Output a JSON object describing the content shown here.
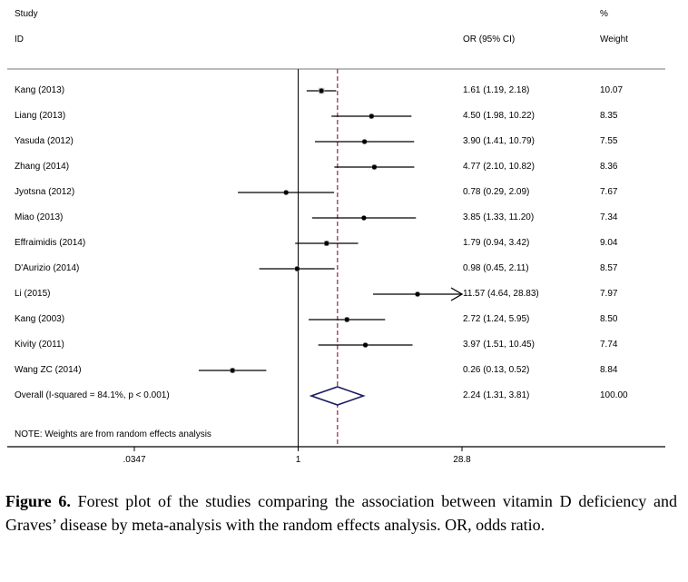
{
  "header": {
    "study": "Study",
    "id": "ID",
    "or_ci": "OR (95% CI)",
    "pct": "%",
    "weight": "Weight"
  },
  "note": "NOTE: Weights are from random effects analysis",
  "chart_data": {
    "type": "forest",
    "scale": "log",
    "xlim": [
      0.0347,
      28.8
    ],
    "ticks": [
      {
        "value": 0.0347,
        "label": ".0347"
      },
      {
        "value": 1,
        "label": "1"
      },
      {
        "value": 28.8,
        "label": "28.8"
      }
    ],
    "null_line": 1,
    "pooled_line": 2.24,
    "studies": [
      {
        "id": "Kang (2013)",
        "or": 1.61,
        "lo": 1.19,
        "hi": 2.18,
        "or_text": "1.61 (1.19, 2.18)",
        "weight": "10.07"
      },
      {
        "id": "Liang (2013)",
        "or": 4.5,
        "lo": 1.98,
        "hi": 10.22,
        "or_text": "4.50 (1.98, 10.22)",
        "weight": "8.35"
      },
      {
        "id": "Yasuda (2012)",
        "or": 3.9,
        "lo": 1.41,
        "hi": 10.79,
        "or_text": "3.90 (1.41, 10.79)",
        "weight": "7.55"
      },
      {
        "id": "Zhang (2014)",
        "or": 4.77,
        "lo": 2.1,
        "hi": 10.82,
        "or_text": "4.77 (2.10, 10.82)",
        "weight": "8.36"
      },
      {
        "id": "Jyotsna (2012)",
        "or": 0.78,
        "lo": 0.29,
        "hi": 2.09,
        "or_text": "0.78 (0.29, 2.09)",
        "weight": "7.67"
      },
      {
        "id": "Miao (2013)",
        "or": 3.85,
        "lo": 1.33,
        "hi": 11.2,
        "or_text": "3.85 (1.33, 11.20)",
        "weight": "7.34"
      },
      {
        "id": "Effraimidis (2014)",
        "or": 1.79,
        "lo": 0.94,
        "hi": 3.42,
        "or_text": "1.79 (0.94, 3.42)",
        "weight": "9.04"
      },
      {
        "id": "D'Aurizio (2014)",
        "or": 0.98,
        "lo": 0.45,
        "hi": 2.11,
        "or_text": "0.98 (0.45, 2.11)",
        "weight": "8.57"
      },
      {
        "id": "Li (2015)",
        "or": 11.57,
        "lo": 4.64,
        "hi": 28.83,
        "or_text": "11.57 (4.64, 28.83)",
        "weight": "7.97",
        "arrow": true
      },
      {
        "id": "Kang (2003)",
        "or": 2.72,
        "lo": 1.24,
        "hi": 5.95,
        "or_text": "2.72 (1.24, 5.95)",
        "weight": "8.50"
      },
      {
        "id": "Kivity (2011)",
        "or": 3.97,
        "lo": 1.51,
        "hi": 10.45,
        "or_text": "3.97 (1.51, 10.45)",
        "weight": "7.74"
      },
      {
        "id": "Wang ZC (2014)",
        "or": 0.26,
        "lo": 0.13,
        "hi": 0.52,
        "or_text": "0.26 (0.13, 0.52)",
        "weight": "8.84"
      }
    ],
    "overall": {
      "id": "Overall  (I-squared = 84.1%, p < 0.001)",
      "or": 2.24,
      "lo": 1.31,
      "hi": 3.81,
      "or_text": "2.24 (1.31, 3.81)",
      "weight": "100.00"
    },
    "colors": {
      "line": "#000000",
      "pooled": "#8b2a3a",
      "diamond": "#1a1a5e",
      "marker_box": "#c0c0c0",
      "rule": "#bbbbbb"
    }
  },
  "caption": {
    "label": "Figure 6.",
    "text": " Forest plot of the studies comparing the association between vitamin D deficiency and Graves’ disease by meta-analysis with the random effects analysis. OR, odds ratio."
  }
}
